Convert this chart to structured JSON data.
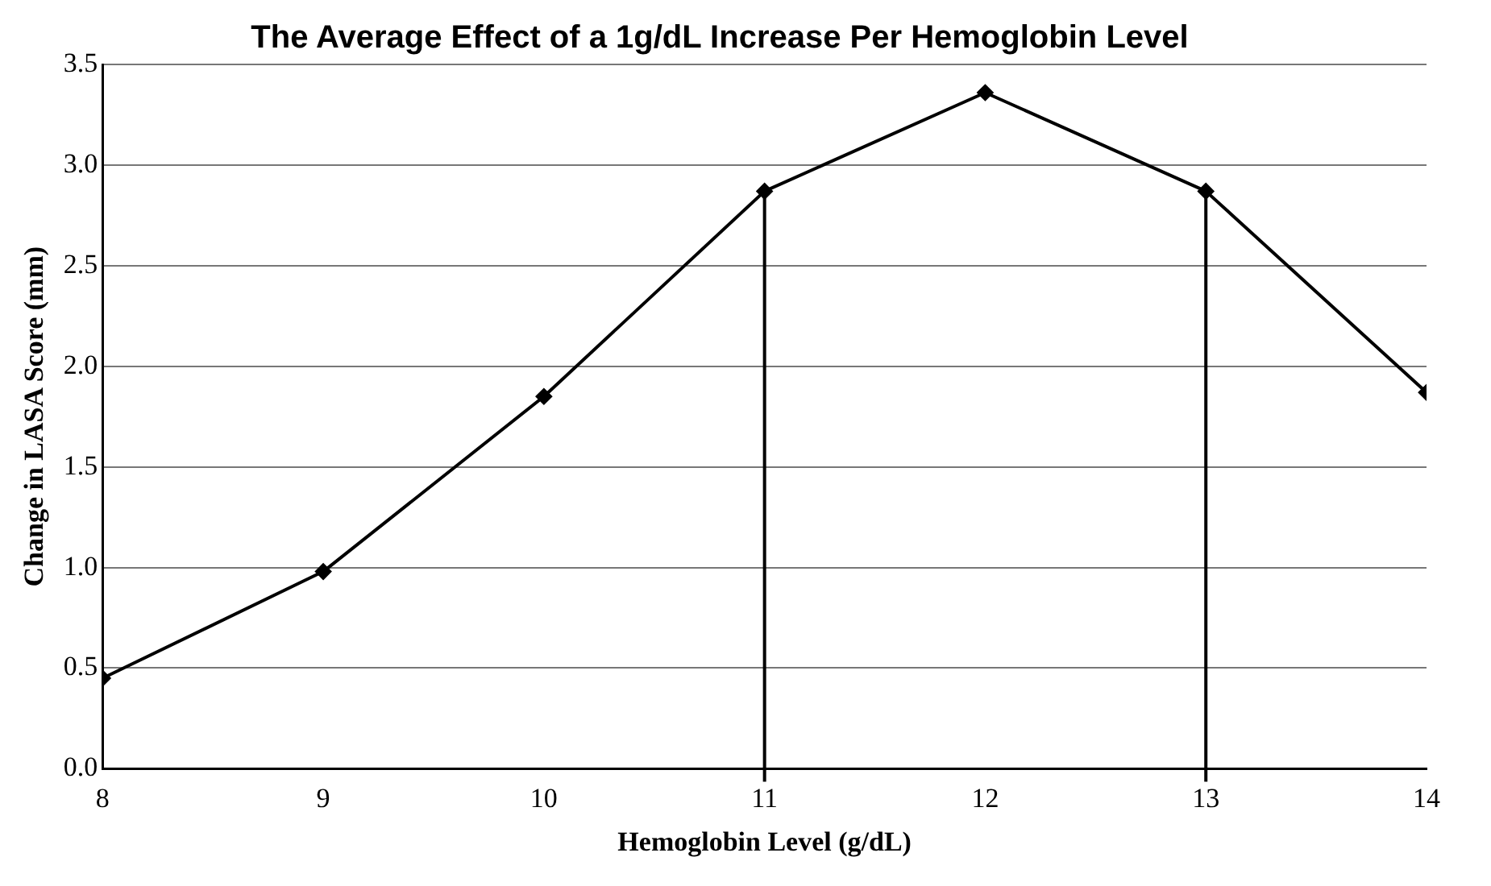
{
  "chart_data": {
    "type": "line",
    "title": "The Average Effect of a 1g/dL Increase Per Hemoglobin Level",
    "xlabel": "Hemoglobin Level (g/dL)",
    "ylabel": "Change in LASA Score (mm)",
    "x": [
      8,
      9,
      10,
      11,
      12,
      13,
      14
    ],
    "series": [
      {
        "color": "#000000",
        "values": [
          0.45,
          0.98,
          1.85,
          2.87,
          3.36,
          2.87,
          1.87
        ]
      }
    ],
    "xlim": [
      8,
      14
    ],
    "xticks": [
      8,
      9,
      10,
      11,
      12,
      13,
      14
    ],
    "ylim": [
      0,
      3.5
    ],
    "yticks": [
      {
        "value": 0,
        "label": "0.0"
      },
      {
        "value": 0.5,
        "label": "0.5"
      },
      {
        "value": 1,
        "label": "1.0"
      },
      {
        "value": 1.5,
        "label": "1.5"
      },
      {
        "value": 2,
        "label": "2.0"
      },
      {
        "value": 2.5,
        "label": "2.5"
      },
      {
        "value": 3,
        "label": "3.0"
      },
      {
        "value": 3.5,
        "label": "3.5"
      }
    ],
    "ref_lines": [
      {
        "axis": "x",
        "value": 11,
        "color": "#000000"
      },
      {
        "axis": "x",
        "value": 13,
        "color": "#000000"
      }
    ],
    "grid": "y",
    "legend": false,
    "marker": "diamond",
    "line_style": "solid"
  }
}
